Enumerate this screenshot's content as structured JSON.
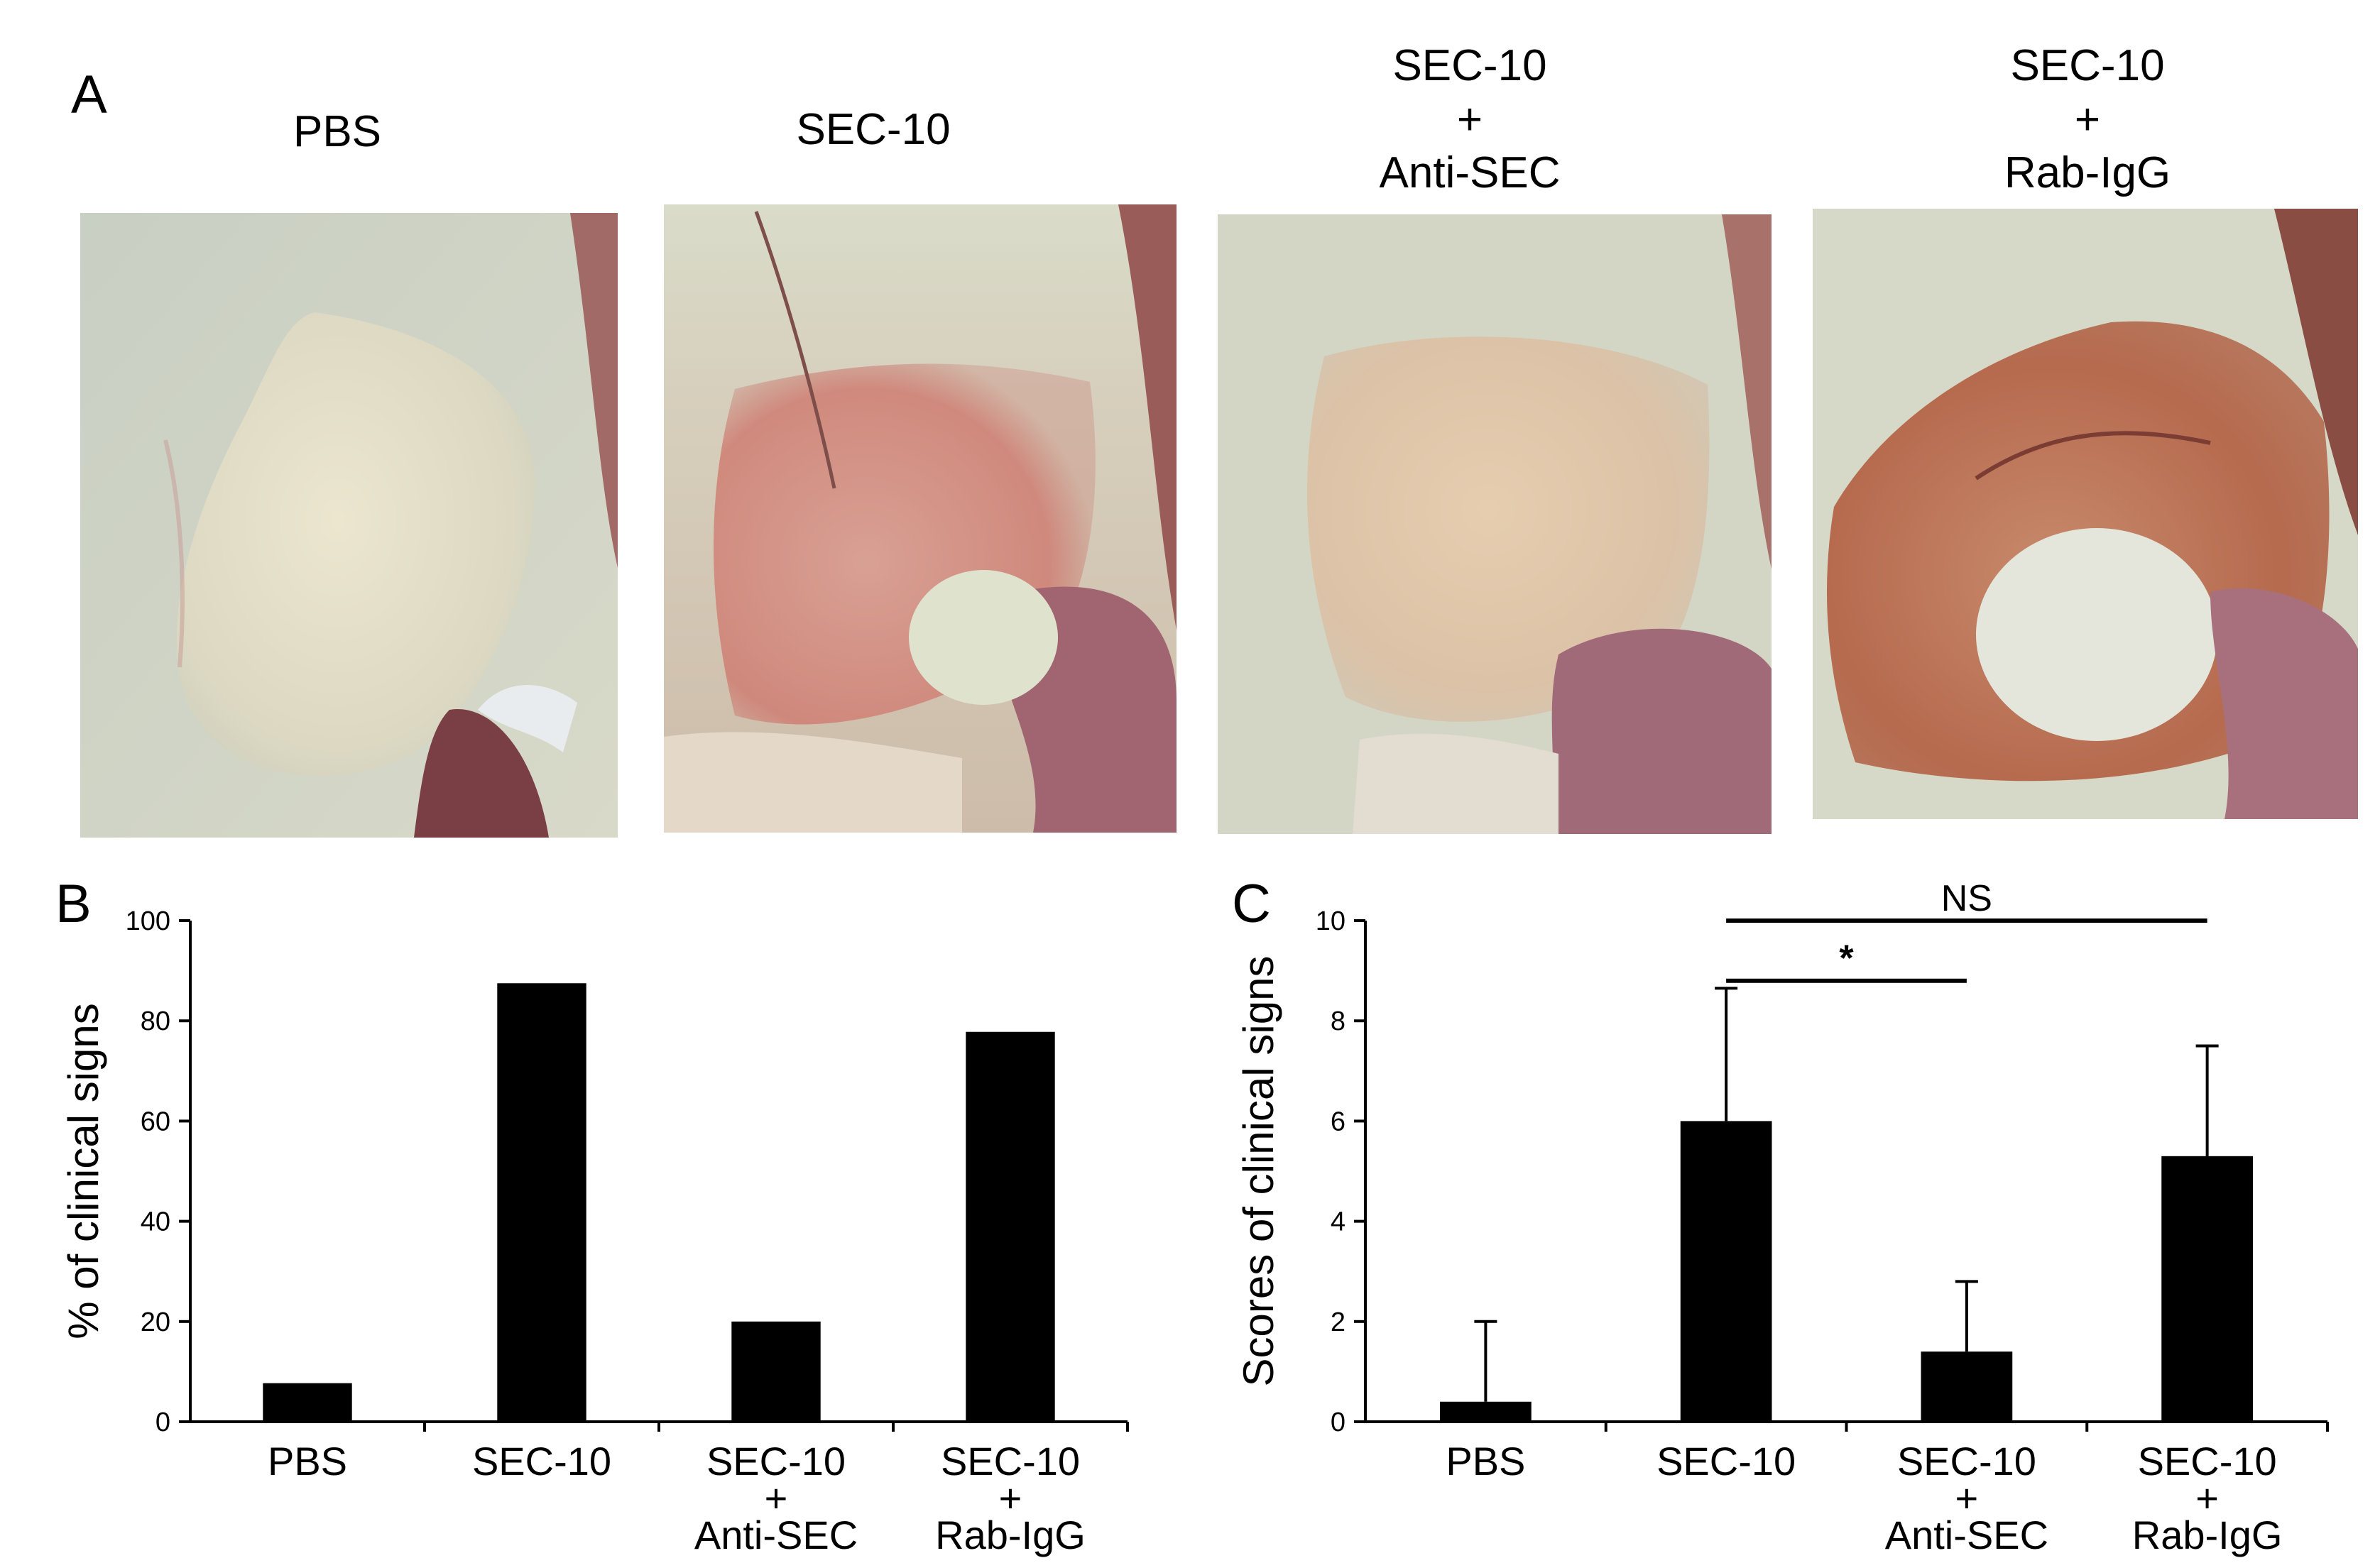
{
  "panel_a": {
    "letter": "A",
    "photos": [
      {
        "label": [
          "PBS"
        ],
        "tone": "pale"
      },
      {
        "label": [
          "SEC-10"
        ],
        "tone": "red"
      },
      {
        "label": [
          "SEC-10",
          "+",
          "Anti-SEC"
        ],
        "tone": "pale-pink"
      },
      {
        "label": [
          "SEC-10",
          "+",
          "Rab-IgG"
        ],
        "tone": "brown-red"
      }
    ]
  },
  "chart_data": [
    {
      "panel": "B",
      "type": "bar",
      "title": "",
      "xlabel": "",
      "ylabel": "% of clinical signs",
      "ylim": [
        0,
        100
      ],
      "yticks": [
        0,
        20,
        40,
        60,
        80,
        100
      ],
      "categories": [
        [
          "PBS"
        ],
        [
          "SEC-10"
        ],
        [
          "SEC-10",
          "+",
          "Anti-SEC"
        ],
        [
          "SEC-10",
          "+",
          "Rab-IgG"
        ]
      ],
      "values": [
        7.7,
        87.5,
        20,
        77.8
      ],
      "bar_color": "#000000",
      "grid": false
    },
    {
      "panel": "C",
      "type": "bar",
      "title": "",
      "xlabel": "",
      "ylabel": "Scores of clinical signs",
      "ylim": [
        0,
        10
      ],
      "yticks": [
        0,
        2,
        4,
        6,
        8,
        10
      ],
      "categories": [
        [
          "PBS"
        ],
        [
          "SEC-10"
        ],
        [
          "SEC-10",
          "+",
          "Anti-SEC"
        ],
        [
          "SEC-10",
          "+",
          "Rab-IgG"
        ]
      ],
      "values": [
        0.4,
        6.0,
        1.4,
        5.3
      ],
      "errors": [
        1.6,
        2.65,
        1.4,
        2.2
      ],
      "bar_color": "#000000",
      "grid": false,
      "annotations": [
        {
          "from": 1,
          "to": 3,
          "label": "NS",
          "level": 10.0
        },
        {
          "from": 1,
          "to": 2,
          "label": "*",
          "level": 8.8
        }
      ]
    }
  ]
}
